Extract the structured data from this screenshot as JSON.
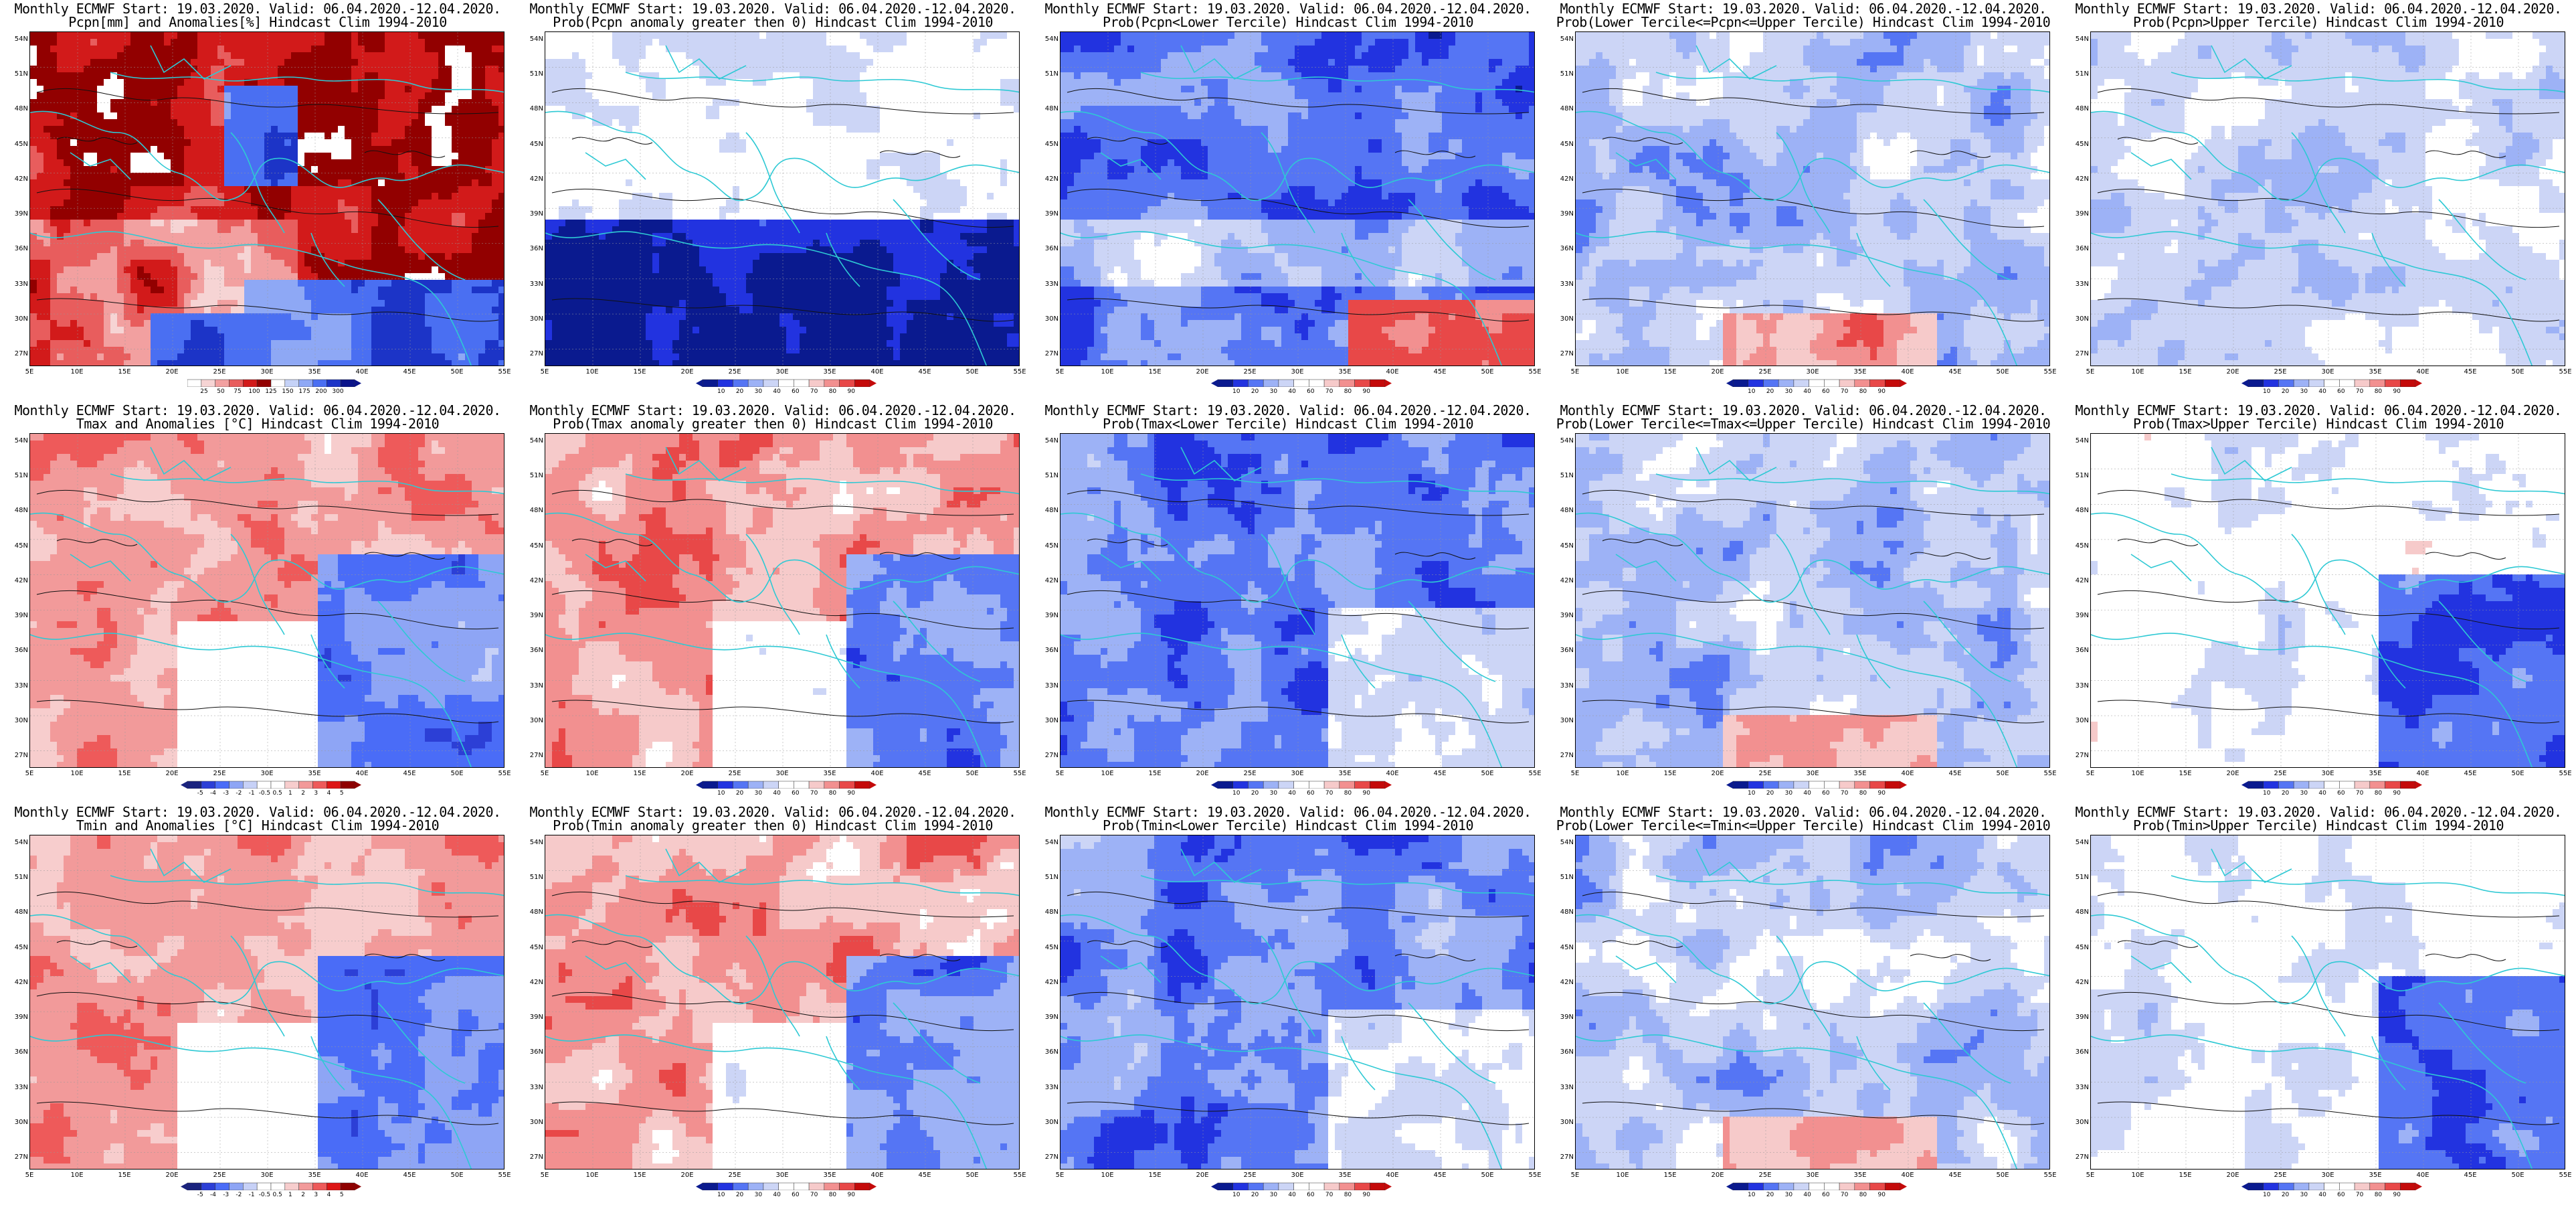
{
  "colors": {
    "coast": "#2ec9d4",
    "contour": "#111111",
    "scale_anomaly": [
      "#1a237e",
      "#2c3fd6",
      "#4a6cf7",
      "#8ea5f5",
      "#c7d1f7",
      "#ffffff",
      "#ffffff",
      "#f7cdcd",
      "#f29a9a",
      "#ee5a5a",
      "#dd1515",
      "#8f0000"
    ],
    "scale_prob": [
      "#0a1a8f",
      "#2233e0",
      "#5575f4",
      "#9db2f6",
      "#ccd5f6",
      "#ffffff",
      "#ffffff",
      "#f6caca",
      "#f29090",
      "#e84848",
      "#c40a0a"
    ],
    "scale_pcpn": [
      "#ffffff",
      "#f6d4d4",
      "#f2a0a0",
      "#e85d5d",
      "#d21a1a",
      "#920000",
      "#ffffff",
      "#c5d2f7",
      "#8ea8f5",
      "#4a6ff2",
      "#1c34c7",
      "#0b148a"
    ]
  },
  "axes": {
    "lat_labels": [
      "54N",
      "51N",
      "48N",
      "45N",
      "42N",
      "39N",
      "36N",
      "33N",
      "30N",
      "27N"
    ],
    "lon_labels": [
      "5E",
      "10E",
      "15E",
      "20E",
      "25E",
      "30E",
      "35E",
      "40E",
      "45E",
      "50E",
      "55E"
    ]
  },
  "panels": [
    {
      "title1": "Monthly ECMWF Start: 19.03.2020. Valid: 06.04.2020.-12.04.2020.",
      "title2": "Pcpn[mm] and Anomalies[%]",
      "title2_extra": " Hindcast Clim 1994-2010",
      "scale": "pcpn",
      "labels": [
        "25",
        "50",
        "75",
        "100",
        "125",
        "150",
        "175",
        "200",
        "300"
      ],
      "field": "pcpn"
    },
    {
      "title1": "Monthly ECMWF Start: 19.03.2020. Valid: 06.04.2020.-12.04.2020.",
      "title2": "Prob(Pcpn anomaly greater then 0) Hindcast Clim 1994-2010",
      "title2_extra": "",
      "scale": "prob",
      "labels": [
        "10",
        "20",
        "30",
        "40",
        "60",
        "70",
        "80",
        "90"
      ],
      "field": "prob_low"
    },
    {
      "title1": "Monthly ECMWF Start: 19.03.2020. Valid: 06.04.2020.-12.04.2020.",
      "title2": "Prob(Pcpn<Lower Tercile) Hindcast Clim 1994-2010",
      "title2_extra": "",
      "scale": "prob",
      "labels": [
        "10",
        "20",
        "30",
        "40",
        "60",
        "70",
        "80",
        "90"
      ],
      "field": "deep_blue"
    },
    {
      "title1": "Monthly ECMWF Start: 19.03.2020. Valid: 06.04.2020.-12.04.2020.",
      "title2": "Prob(Lower Tercile<=Pcpn<=Upper Tercile) Hindcast Clim 1994-2010",
      "title2_extra": "",
      "scale": "prob",
      "labels": [
        "10",
        "20",
        "30",
        "40",
        "60",
        "70",
        "80",
        "90"
      ],
      "field": "mid_blue"
    },
    {
      "title1": "Monthly ECMWF Start: 19.03.2020. Valid: 06.04.2020.-12.04.2020.",
      "title2": "Prob(Pcpn>Upper Tercile) Hindcast Clim 1994-2010",
      "title2_extra": "",
      "scale": "prob",
      "labels": [
        "10",
        "20",
        "30",
        "40",
        "60",
        "70",
        "80",
        "90"
      ],
      "field": "light_blue"
    },
    {
      "title1": "Monthly ECMWF Start: 19.03.2020. Valid: 06.04.2020.-12.04.2020.",
      "title2": "Tmax and Anomalies [°C] Hindcast Clim 1994-2010",
      "title2_extra": "",
      "scale": "anomaly",
      "labels": [
        "-5",
        "-4",
        "-3",
        "-2",
        "-1",
        "-0.5",
        "0.5",
        "1",
        "2",
        "3",
        "4",
        "5"
      ],
      "field": "tanom"
    },
    {
      "title1": "Monthly ECMWF Start: 19.03.2020. Valid: 06.04.2020.-12.04.2020.",
      "title2": "Prob(Tmax anomaly greater then 0) Hindcast Clim 1994-2010",
      "title2_extra": "",
      "scale": "prob",
      "labels": [
        "10",
        "20",
        "30",
        "40",
        "60",
        "70",
        "80",
        "90"
      ],
      "field": "warm_prob"
    },
    {
      "title1": "Monthly ECMWF Start: 19.03.2020. Valid: 06.04.2020.-12.04.2020.",
      "title2": "Prob(Tmax<Lower Tercile) Hindcast Clim 1994-2010",
      "title2_extra": "",
      "scale": "prob",
      "labels": [
        "10",
        "20",
        "30",
        "40",
        "60",
        "70",
        "80",
        "90"
      ],
      "field": "deep_blue2"
    },
    {
      "title1": "Monthly ECMWF Start: 19.03.2020. Valid: 06.04.2020.-12.04.2020.",
      "title2": "Prob(Lower Tercile<=Tmax<=Upper Tercile) Hindcast Clim 1994-2010",
      "title2_extra": "",
      "scale": "prob",
      "labels": [
        "10",
        "20",
        "30",
        "40",
        "60",
        "70",
        "80",
        "90"
      ],
      "field": "mid_blue"
    },
    {
      "title1": "Monthly ECMWF Start: 19.03.2020. Valid: 06.04.2020.-12.04.2020.",
      "title2": "Prob(Tmax>Upper Tercile) Hindcast Clim 1994-2010",
      "title2_extra": "",
      "scale": "prob",
      "labels": [
        "10",
        "20",
        "30",
        "40",
        "60",
        "70",
        "80",
        "90"
      ],
      "field": "upper_mix"
    },
    {
      "title1": "Monthly ECMWF Start: 19.03.2020. Valid: 06.04.2020.-12.04.2020.",
      "title2": "Tmin and Anomalies [°C] Hindcast Clim 1994-2010",
      "title2_extra": "",
      "scale": "anomaly",
      "labels": [
        "-5",
        "-4",
        "-3",
        "-2",
        "-1",
        "-0.5",
        "0.5",
        "1",
        "2",
        "3",
        "4",
        "5"
      ],
      "field": "tanom_min"
    },
    {
      "title1": "Monthly ECMWF Start: 19.03.2020. Valid: 06.04.2020.-12.04.2020.",
      "title2": "Prob(Tmin anomaly greater then 0) Hindcast Clim 1994-2010",
      "title2_extra": "",
      "scale": "prob",
      "labels": [
        "10",
        "20",
        "30",
        "40",
        "60",
        "70",
        "80",
        "90"
      ],
      "field": "warm_prob"
    },
    {
      "title1": "Monthly ECMWF Start: 19.03.2020. Valid: 06.04.2020.-12.04.2020.",
      "title2": "Prob(Tmin<Lower Tercile) Hindcast Clim 1994-2010",
      "title2_extra": "",
      "scale": "prob",
      "labels": [
        "10",
        "20",
        "30",
        "40",
        "60",
        "70",
        "80",
        "90"
      ],
      "field": "deep_blue2"
    },
    {
      "title1": "Monthly ECMWF Start: 19.03.2020. Valid: 06.04.2020.-12.04.2020.",
      "title2": "Prob(Lower Tercile<=Tmin<=Upper Tercile) Hindcast Clim 1994-2010",
      "title2_extra": "",
      "scale": "prob",
      "labels": [
        "10",
        "20",
        "30",
        "40",
        "60",
        "70",
        "80",
        "90"
      ],
      "field": "mid_blue"
    },
    {
      "title1": "Monthly ECMWF Start: 19.03.2020. Valid: 06.04.2020.-12.04.2020.",
      "title2": "Prob(Tmin>Upper Tercile) Hindcast Clim 1994-2010",
      "title2_extra": "",
      "scale": "prob",
      "labels": [
        "10",
        "20",
        "30",
        "40",
        "60",
        "70",
        "80",
        "90"
      ],
      "field": "upper_mix"
    }
  ]
}
